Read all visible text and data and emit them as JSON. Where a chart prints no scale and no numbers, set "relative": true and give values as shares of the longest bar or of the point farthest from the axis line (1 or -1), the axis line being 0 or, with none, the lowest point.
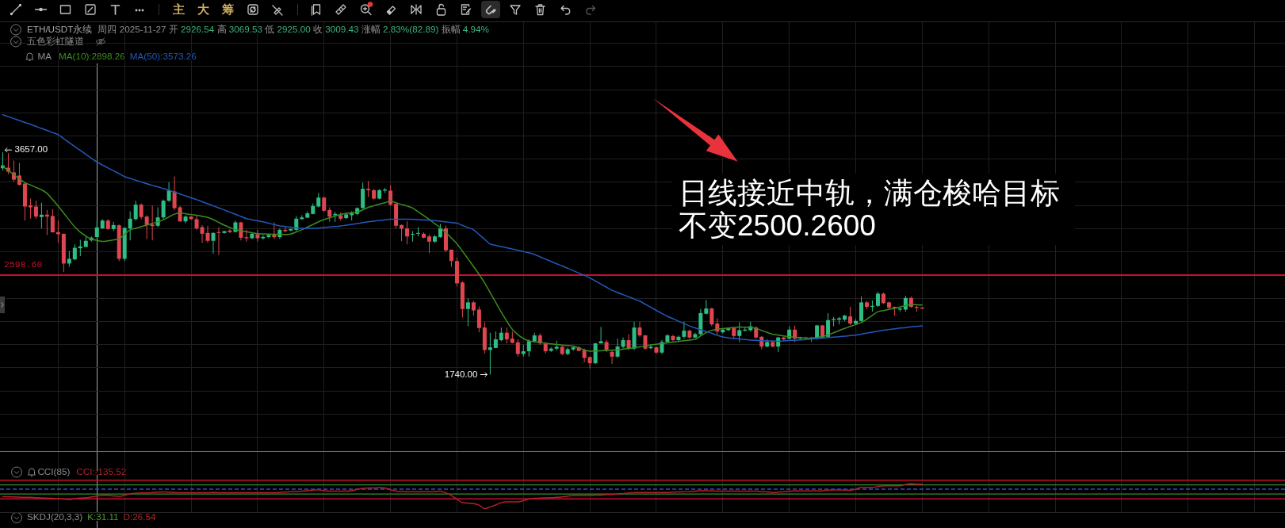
{
  "chart_data": [
    {
      "type": "candlestick",
      "title": "ETH/USDT永续",
      "subtitle": "周四 2025-11-27 开 2926.54 高 3069.53 低 2925.00 收 3009.43 涨幅 2.83%(82.89) 振幅 4.94%",
      "categories": [
        null,
        null,
        null,
        null,
        null,
        null,
        null,
        null,
        null,
        null,
        null,
        null,
        null,
        null,
        null,
        null,
        null,
        null,
        null,
        null,
        null,
        null,
        null,
        null,
        null,
        null,
        null,
        null,
        null,
        null,
        null,
        null,
        null,
        null,
        null,
        null,
        null,
        null,
        null,
        null,
        null,
        null,
        null,
        null,
        null,
        null,
        null,
        null,
        null,
        null,
        null,
        null,
        null,
        null,
        null,
        null,
        null,
        null,
        null,
        null,
        null,
        null,
        null,
        null,
        null,
        null,
        null,
        null,
        null,
        null,
        null,
        null,
        null,
        null,
        null,
        null,
        null,
        null,
        null,
        null,
        null,
        null,
        null,
        null,
        null,
        null,
        null,
        null,
        null,
        null,
        null,
        null,
        null,
        null,
        null,
        null,
        null,
        null,
        null,
        null,
        null,
        null,
        null,
        null,
        null,
        null,
        null,
        null,
        null,
        null,
        null,
        null,
        null,
        null,
        null,
        null,
        null,
        null,
        null,
        null,
        null,
        null,
        null,
        null,
        null,
        null,
        null,
        null,
        null,
        null,
        null,
        null,
        null,
        null,
        null,
        null,
        null,
        null,
        null,
        null,
        null,
        null,
        null,
        null,
        null,
        null,
        null,
        null,
        null,
        null,
        null,
        null,
        null,
        null,
        null,
        null,
        null,
        null,
        null,
        null,
        null,
        null,
        null,
        null,
        null,
        null,
        null,
        null,
        null,
        null,
        null,
        null,
        null,
        null,
        null,
        null,
        null,
        null,
        null,
        null,
        null,
        null,
        null,
        null,
        null,
        null,
        null,
        null,
        null,
        null,
        null,
        null,
        null,
        null,
        null,
        null,
        null,
        null,
        null,
        null,
        null,
        null,
        null,
        null,
        null,
        null,
        null,
        null,
        null,
        null,
        null,
        null,
        null,
        null,
        null,
        null,
        null,
        null,
        null,
        null,
        null,
        null,
        null,
        null,
        null,
        null,
        null,
        null,
        null,
        null,
        null,
        null
      ],
      "ohlc": [
        [
          3520,
          3657,
          3500,
          3545
        ],
        [
          3525,
          3650,
          3470,
          3490
        ],
        [
          3484,
          3587,
          3404,
          3422
        ],
        [
          3457,
          3566,
          3370,
          3377
        ],
        [
          3388,
          3390,
          3069,
          3190
        ],
        [
          3199,
          3258,
          3085,
          3183
        ],
        [
          3190,
          3240,
          3085,
          3103
        ],
        [
          3099,
          3222,
          3001,
          3119
        ],
        [
          3119,
          3160,
          2944,
          3103
        ],
        [
          3108,
          3167,
          2967,
          2967
        ],
        [
          2969,
          3069,
          2876,
          2951
        ],
        [
          2955,
          2955,
          2625,
          2698
        ],
        [
          2698,
          2807,
          2670,
          2739
        ],
        [
          2734,
          2864,
          2727,
          2834
        ],
        [
          2830,
          2903,
          2762,
          2846
        ],
        [
          2841,
          2932,
          2841,
          2894
        ],
        [
          2898,
          2932,
          2887,
          2921
        ],
        [
          2926.54,
          3069.53,
          2925,
          3009.43
        ],
        [
          3001,
          3080,
          2996,
          3069
        ],
        [
          3069,
          3080,
          2990,
          2996
        ],
        [
          2996,
          3058,
          2978,
          3030
        ],
        [
          3028,
          3035,
          2720,
          2739
        ],
        [
          2739,
          3012,
          2720,
          3005
        ],
        [
          3001,
          3149,
          2898,
          3085
        ],
        [
          3081,
          3240,
          3069,
          3206
        ],
        [
          3206,
          3217,
          3081,
          3099
        ],
        [
          3103,
          3115,
          2910,
          3030
        ],
        [
          3035,
          3199,
          2898,
          3021
        ],
        [
          3024,
          3183,
          3012,
          3096
        ],
        [
          3096,
          3251,
          3081,
          3240
        ],
        [
          3240,
          3400,
          3229,
          3327
        ],
        [
          3320,
          3450,
          3160,
          3176
        ],
        [
          3183,
          3194,
          3058,
          3062
        ],
        [
          3062,
          3115,
          3046,
          3103
        ],
        [
          3103,
          3108,
          3076,
          3081
        ],
        [
          3081,
          3115,
          2990,
          3001
        ],
        [
          3012,
          3030,
          2876,
          2955
        ],
        [
          2962,
          3024,
          2876,
          2894
        ],
        [
          2894,
          2967,
          2784,
          2962
        ],
        [
          2969,
          3012,
          2773,
          2962
        ],
        [
          2962,
          2978,
          2955,
          2978
        ],
        [
          2983,
          2994,
          2962,
          2969
        ],
        [
          2971,
          3069,
          2967,
          3053
        ],
        [
          3053,
          3058,
          2898,
          2921
        ],
        [
          2925,
          2989,
          2887,
          2916
        ],
        [
          2916,
          2967,
          2910,
          2955
        ],
        [
          2951,
          2989,
          2887,
          2916
        ],
        [
          2916,
          2944,
          2905,
          2928
        ],
        [
          2926,
          2955,
          2916,
          2944
        ],
        [
          2948,
          3053,
          2910,
          2926
        ],
        [
          2926,
          3001,
          2910,
          2989
        ],
        [
          2989,
          3012,
          2967,
          2978
        ],
        [
          2983,
          3001,
          2978,
          2996
        ],
        [
          2989,
          3108,
          2978,
          3085
        ],
        [
          3081,
          3115,
          3076,
          3096
        ],
        [
          3094,
          3149,
          3090,
          3131
        ],
        [
          3126,
          3217,
          3122,
          3194
        ],
        [
          3190,
          3308,
          3183,
          3267
        ],
        [
          3267,
          3274,
          3144,
          3154
        ],
        [
          3160,
          3183,
          3058,
          3103
        ],
        [
          3115,
          3144,
          3058,
          3126
        ],
        [
          3115,
          3138,
          3069,
          3085
        ],
        [
          3090,
          3138,
          3081,
          3122
        ],
        [
          3115,
          3149,
          3069,
          3131
        ],
        [
          3126,
          3183,
          3115,
          3176
        ],
        [
          3176,
          3395,
          3172,
          3343
        ],
        [
          3343,
          3411,
          3274,
          3331
        ],
        [
          3331,
          3340,
          3251,
          3258
        ],
        [
          3258,
          3340,
          3251,
          3331
        ],
        [
          3327,
          3350,
          3308,
          3336
        ],
        [
          3327,
          3372,
          3194,
          3206
        ],
        [
          3213,
          3217,
          3001,
          3024
        ],
        [
          3030,
          3035,
          2891,
          2999
        ],
        [
          3001,
          3062,
          2864,
          2932
        ],
        [
          2948,
          2978,
          2887,
          2953
        ],
        [
          2955,
          3012,
          2932,
          2962
        ],
        [
          2955,
          2967,
          2916,
          2921
        ],
        [
          2932,
          2948,
          2789,
          2887
        ],
        [
          2887,
          2944,
          2876,
          2932
        ],
        [
          2926,
          3040,
          2921,
          3001
        ],
        [
          3001,
          3024,
          2796,
          2812
        ],
        [
          2818,
          2818,
          2670,
          2720
        ],
        [
          2720,
          2750,
          2500,
          2527
        ],
        [
          2534,
          2545,
          2233,
          2306
        ],
        [
          2306,
          2397,
          2158,
          2363
        ],
        [
          2363,
          2374,
          2249,
          2294
        ],
        [
          2301,
          2328,
          2105,
          2142
        ],
        [
          2146,
          2192,
          1923,
          1952
        ],
        [
          1952,
          2101,
          1740,
          1975
        ],
        [
          1970,
          2112,
          1968,
          2044
        ],
        [
          2037,
          2146,
          2028,
          2101
        ],
        [
          2101,
          2146,
          2009,
          2044
        ],
        [
          2050,
          2112,
          2009,
          2014
        ],
        [
          2018,
          2044,
          1895,
          1918
        ],
        [
          1918,
          1998,
          1895,
          1941
        ],
        [
          1941,
          2044,
          1895,
          2028
        ],
        [
          2028,
          2101,
          2014,
          2078
        ],
        [
          2078,
          2096,
          1998,
          2009
        ],
        [
          2005,
          2021,
          1923,
          1941
        ],
        [
          1945,
          1975,
          1936,
          1964
        ],
        [
          1964,
          2032,
          1952,
          1980
        ],
        [
          1980,
          1986,
          1907,
          1918
        ],
        [
          1918,
          1973,
          1907,
          1959
        ],
        [
          1957,
          1986,
          1945,
          1975
        ],
        [
          1975,
          1986,
          1940,
          1945
        ],
        [
          1952,
          1964,
          1845,
          1884
        ],
        [
          1891,
          1895,
          1793,
          1838
        ],
        [
          1838,
          2014,
          1832,
          2009
        ],
        [
          2009,
          2151,
          2009,
          2028
        ],
        [
          2021,
          2037,
          1936,
          1952
        ],
        [
          1936,
          1952,
          1832,
          1895
        ],
        [
          1895,
          2050,
          1884,
          1982
        ],
        [
          1980,
          2060,
          1968,
          2037
        ],
        [
          2037,
          2089,
          1952,
          1964
        ],
        [
          1964,
          2196,
          1952,
          2146
        ],
        [
          2146,
          2196,
          2066,
          2078
        ],
        [
          2078,
          2082,
          1952,
          1964
        ],
        [
          1968,
          1998,
          1959,
          1980
        ],
        [
          1975,
          1986,
          1918,
          1930
        ],
        [
          1930,
          2037,
          1918,
          2021
        ],
        [
          2021,
          2089,
          2014,
          2078
        ],
        [
          2073,
          2082,
          2028,
          2037
        ],
        [
          2037,
          2078,
          2028,
          2066
        ],
        [
          2066,
          2196,
          2050,
          2119
        ],
        [
          2119,
          2128,
          2050,
          2060
        ],
        [
          2060,
          2101,
          2055,
          2089
        ],
        [
          2089,
          2306,
          2078,
          2271
        ],
        [
          2265,
          2385,
          2260,
          2310
        ],
        [
          2310,
          2317,
          2157,
          2173
        ],
        [
          2180,
          2226,
          2089,
          2112
        ],
        [
          2105,
          2135,
          2096,
          2128
        ],
        [
          2123,
          2146,
          2119,
          2139
        ],
        [
          2141,
          2146,
          2050,
          2073
        ],
        [
          2073,
          2192,
          2021,
          2123
        ],
        [
          2119,
          2146,
          2112,
          2128
        ],
        [
          2123,
          2196,
          2112,
          2157
        ],
        [
          2146,
          2157,
          2050,
          2060
        ],
        [
          2066,
          2073,
          1959,
          1982
        ],
        [
          1982,
          2044,
          1975,
          2021
        ],
        [
          2021,
          2028,
          1975,
          1982
        ],
        [
          1982,
          2066,
          1934,
          2060
        ],
        [
          2060,
          2066,
          2032,
          2044
        ],
        [
          2050,
          2157,
          2044,
          2128
        ],
        [
          2128,
          2162,
          2021,
          2050
        ],
        [
          2050,
          2066,
          2044,
          2060
        ],
        [
          2060,
          2066,
          2050,
          2055
        ],
        [
          2060,
          2066,
          2021,
          2044
        ],
        [
          2050,
          2169,
          2044,
          2164
        ],
        [
          2164,
          2169,
          2050,
          2060
        ],
        [
          2066,
          2271,
          2060,
          2210
        ],
        [
          2210,
          2237,
          2157,
          2219
        ],
        [
          2214,
          2237,
          2173,
          2226
        ],
        [
          2214,
          2255,
          2203,
          2249
        ],
        [
          2242,
          2324,
          2169,
          2180
        ],
        [
          2180,
          2219,
          2173,
          2203
        ],
        [
          2203,
          2415,
          2196,
          2363
        ],
        [
          2363,
          2374,
          2306,
          2324
        ],
        [
          2324,
          2379,
          2283,
          2333
        ],
        [
          2333,
          2454,
          2324,
          2438
        ],
        [
          2438,
          2447,
          2351,
          2356
        ],
        [
          2363,
          2369,
          2306,
          2317
        ],
        [
          2324,
          2328,
          2249,
          2310
        ],
        [
          2301,
          2324,
          2283,
          2310
        ],
        [
          2301,
          2420,
          2283,
          2401
        ],
        [
          2401,
          2415,
          2317,
          2324
        ],
        [
          2324,
          2333,
          2283,
          2315
        ],
        [
          2319,
          2319,
          2306,
          2310
        ],
        null,
        null,
        null,
        null,
        null,
        null,
        null,
        null,
        null,
        null,
        null,
        null,
        null,
        null,
        null,
        null,
        null,
        null,
        null,
        null,
        null,
        null,
        null,
        null,
        null,
        null,
        null,
        null,
        null,
        null,
        null,
        null,
        null,
        null,
        null,
        null,
        null,
        null,
        null,
        null,
        null,
        null,
        null,
        null,
        null,
        null,
        null,
        null,
        null,
        null,
        null,
        null,
        null,
        null,
        null,
        null,
        null,
        null,
        null,
        null,
        null,
        null,
        null,
        null,
        null
      ],
      "series": [
        {
          "type": "line",
          "name": "MA(10):2898.26",
          "color": "#3d8c1f",
          "values": [
            3536,
            3500,
            3464,
            3429,
            3396,
            3375,
            3355,
            3334,
            3304,
            3249,
            3194,
            3134,
            3073,
            3013,
            2969,
            2936,
            2908,
            2898,
            2889,
            2894,
            2902,
            2910,
            2950,
            2989,
            3002,
            3016,
            3029,
            3044,
            3059,
            3076,
            3100,
            3124,
            3135,
            3128,
            3121,
            3115,
            3105,
            3096,
            3077,
            3053,
            3029,
            3009,
            2991,
            2981,
            2972,
            2964,
            2955,
            2954,
            2952,
            2951,
            2950,
            2949,
            2953,
            2971,
            2989,
            3012,
            3035,
            3058,
            3077,
            3092,
            3107,
            3122,
            3130,
            3137,
            3143,
            3161,
            3183,
            3196,
            3210,
            3223,
            3236,
            3222,
            3208,
            3194,
            3177,
            3144,
            3112,
            3078,
            3042,
            3007,
            2965,
            2918,
            2869,
            2804,
            2738,
            2672,
            2604,
            2531,
            2447,
            2363,
            2279,
            2201,
            2130,
            2084,
            2051,
            2031,
            2024,
            2017,
            2010,
            2005,
            2000,
            1995,
            1991,
            1986,
            1970,
            1954,
            1941,
            1944,
            1946,
            1948,
            1951,
            1954,
            1960,
            1966,
            1972,
            1979,
            1987,
            1996,
            2002,
            2008,
            2014,
            2020,
            2026,
            2032,
            2038,
            2044,
            2074,
            2103,
            2122,
            2132,
            2137,
            2142,
            2147,
            2150,
            2149,
            2147,
            2138,
            2121,
            2104,
            2088,
            2081,
            2074,
            2067,
            2062,
            2058,
            2053,
            2053,
            2061,
            2069,
            2082,
            2101,
            2120,
            2138,
            2155,
            2172,
            2189,
            2218,
            2251,
            2283,
            2293,
            2303,
            2313,
            2324,
            2335,
            2344,
            2342,
            2340,
            null,
            null,
            null,
            null,
            null,
            null,
            null,
            null,
            null,
            null,
            null,
            null,
            null,
            null,
            null,
            null,
            null,
            null,
            null,
            null,
            null,
            null,
            null,
            null,
            null,
            null,
            null,
            null,
            null,
            null,
            null,
            null,
            null,
            null,
            null,
            null,
            null,
            null,
            null,
            null,
            null,
            null,
            null,
            null,
            null,
            null,
            null,
            null,
            null,
            null,
            null,
            null,
            null,
            null,
            null,
            null,
            null,
            null,
            null,
            null,
            null,
            null,
            null,
            null,
            null
          ]
        },
        {
          "type": "line",
          "name": "MA(50):3573.26",
          "color": "#2159b9",
          "values": [
            3981,
            3965,
            3948,
            3932,
            3915,
            3899,
            3881,
            3863,
            3846,
            3828,
            3810,
            3776,
            3741,
            3707,
            3674,
            3640,
            3607,
            3573,
            3548,
            3523,
            3498,
            3473,
            3448,
            3433,
            3417,
            3402,
            3386,
            3372,
            3359,
            3345,
            3331,
            3315,
            3298,
            3282,
            3265,
            3249,
            3231,
            3214,
            3196,
            3178,
            3160,
            3141,
            3123,
            3104,
            3085,
            3076,
            3067,
            3058,
            3046,
            3034,
            3023,
            3017,
            3012,
            3006,
            3001,
            3001,
            3001,
            3003,
            3008,
            3013,
            3018,
            3022,
            3029,
            3036,
            3043,
            3051,
            3058,
            3064,
            3070,
            3075,
            3081,
            3081,
            3081,
            3081,
            3079,
            3077,
            3074,
            3072,
            3069,
            3063,
            3058,
            3052,
            3046,
            3027,
            3008,
            2989,
            2948,
            2907,
            2866,
            2855,
            2844,
            2834,
            2823,
            2812,
            2801,
            2791,
            2776,
            2756,
            2736,
            2716,
            2696,
            2677,
            2657,
            2637,
            2616,
            2596,
            2574,
            2547,
            2521,
            2494,
            2468,
            2448,
            2430,
            2411,
            2392,
            2374,
            2347,
            2321,
            2294,
            2268,
            2243,
            2222,
            2201,
            2180,
            2160,
            2143,
            2127,
            2112,
            2096,
            2080,
            2065,
            2057,
            2052,
            2047,
            2042,
            2037,
            2035,
            2033,
            2031,
            2030,
            2028,
            2031,
            2034,
            2036,
            2039,
            2043,
            2047,
            2051,
            2055,
            2059,
            2063,
            2067,
            2072,
            2076,
            2081,
            2089,
            2098,
            2106,
            2115,
            2123,
            2129,
            2135,
            2141,
            2146,
            2152,
            2156,
            2160,
            null,
            null,
            null,
            null,
            null,
            null,
            null,
            null,
            null,
            null,
            null,
            null,
            null,
            null,
            null,
            null,
            null,
            null,
            null,
            null,
            null,
            null,
            null,
            null,
            null,
            null,
            null,
            null,
            null,
            null,
            null,
            null,
            null,
            null,
            null,
            null,
            null,
            null,
            null,
            null,
            null,
            null,
            null,
            null,
            null,
            null,
            null,
            null,
            null,
            null,
            null,
            null,
            null,
            null,
            null,
            null,
            null,
            null,
            null,
            null,
            null,
            null,
            null,
            null,
            null
          ]
        }
      ],
      "grid": true,
      "legend": "top left",
      "legend_title": "MA",
      "ref_lines": [
        {
          "axis": "y",
          "value": 2598.6,
          "label": "2598.60",
          "color": "#c8102e"
        }
      ],
      "annotations": [
        "主",
        "大",
        "筹",
        "五色彩虹隧道",
        "日线接近中轨，满仓梭哈目标不变2500.2600",
        "3657.00",
        "1740.00"
      ]
    },
    {
      "type": "line",
      "title": "CCI(85)",
      "relative": true,
      "categories": [
        null,
        null,
        null,
        null,
        null,
        null,
        null,
        null,
        null,
        null,
        null,
        null,
        null,
        null,
        null,
        null,
        null,
        null,
        null,
        null,
        null,
        null,
        null,
        null,
        null,
        null,
        null,
        null,
        null,
        null,
        null,
        null,
        null,
        null,
        null,
        null,
        null,
        null,
        null,
        null,
        null,
        null,
        null,
        null,
        null,
        null,
        null,
        null,
        null,
        null,
        null,
        null,
        null,
        null,
        null,
        null,
        null,
        null,
        null,
        null,
        null,
        null,
        null,
        null,
        null,
        null,
        null,
        null,
        null,
        null,
        null,
        null,
        null,
        null,
        null,
        null,
        null,
        null,
        null,
        null,
        null,
        null,
        null,
        null,
        null,
        null,
        null,
        null,
        null,
        null,
        null,
        null,
        null,
        null,
        null,
        null,
        null,
        null,
        null,
        null,
        null,
        null,
        null,
        null,
        null,
        null,
        null,
        null,
        null,
        null,
        null,
        null,
        null,
        null,
        null,
        null,
        null,
        null,
        null,
        null,
        null,
        null,
        null,
        null,
        null,
        null,
        null,
        null,
        null,
        null,
        null,
        null,
        null,
        null,
        null,
        null,
        null,
        null,
        null,
        null,
        null,
        null,
        null,
        null,
        null,
        null,
        null,
        null,
        null,
        null,
        null,
        null,
        null,
        null,
        null,
        null,
        null,
        null,
        null,
        null,
        null,
        null,
        null,
        null,
        null,
        null,
        null,
        null,
        null,
        null,
        null,
        null,
        null,
        null,
        null,
        null,
        null,
        null,
        null,
        null,
        null,
        null,
        null,
        null,
        null,
        null,
        null,
        null,
        null,
        null,
        null,
        null,
        null,
        null,
        null,
        null,
        null,
        null,
        null,
        null,
        null,
        null,
        null,
        null,
        null,
        null,
        null,
        null,
        null,
        null,
        null,
        null,
        null,
        null,
        null,
        null,
        null,
        null,
        null,
        null,
        null,
        null,
        null,
        null,
        null,
        null,
        null,
        null,
        null,
        null,
        null,
        null
      ],
      "series": [
        {
          "name": "CCI:-135.52",
          "color": "#b3202a",
          "values": [
            -0.39,
            -0.39,
            -0.4,
            -0.41,
            -0.42,
            -0.42,
            -0.44,
            -0.45,
            -0.46,
            -0.47,
            -0.49,
            -0.51,
            -0.53,
            -0.49,
            -0.46,
            -0.44,
            -0.4,
            -0.36,
            -0.31,
            -0.31,
            -0.35,
            -0.37,
            -0.31,
            -0.24,
            -0.21,
            -0.19,
            -0.19,
            -0.17,
            -0.15,
            -0.14,
            -0.15,
            -0.17,
            -0.18,
            -0.18,
            -0.18,
            -0.18,
            -0.18,
            -0.18,
            -0.17,
            -0.18,
            -0.18,
            -0.18,
            -0.18,
            -0.18,
            -0.18,
            -0.18,
            -0.18,
            -0.18,
            -0.18,
            -0.18,
            -0.17,
            -0.15,
            -0.13,
            -0.12,
            -0.1,
            -0.08,
            -0.05,
            -0.03,
            -0.08,
            -0.1,
            -0.1,
            -0.1,
            -0.1,
            -0.08,
            -0.01,
            0.04,
            0.06,
            0.06,
            0.08,
            0.06,
            -0.03,
            -0.1,
            -0.12,
            -0.13,
            -0.13,
            -0.13,
            -0.13,
            -0.13,
            -0.12,
            -0.1,
            -0.19,
            -0.33,
            -0.51,
            -0.69,
            -0.72,
            -0.74,
            -0.82,
            -1,
            -0.91,
            -0.81,
            -0.69,
            -0.65,
            -0.65,
            -0.65,
            -0.59,
            -0.51,
            -0.47,
            -0.46,
            -0.45,
            -0.44,
            -0.42,
            -0.4,
            -0.36,
            -0.33,
            -0.33,
            -0.33,
            -0.33,
            -0.31,
            -0.3,
            -0.28,
            -0.27,
            -0.24,
            -0.23,
            -0.19,
            -0.18,
            -0.17,
            -0.17,
            -0.17,
            -0.17,
            -0.17,
            -0.17,
            -0.15,
            -0.14,
            -0.13,
            -0.12,
            -0.1,
            -0.08,
            -0.08,
            -0.09,
            -0.1,
            -0.1,
            -0.1,
            -0.1,
            -0.1,
            -0.1,
            -0.1,
            -0.1,
            -0.13,
            -0.14,
            -0.17,
            -0.15,
            -0.13,
            -0.1,
            -0.09,
            -0.09,
            -0.09,
            -0.09,
            -0.09,
            -0.08,
            -0.05,
            -0.04,
            -0.04,
            -0.05,
            -0.05,
            0,
            0.09,
            0.09,
            0.09,
            0.14,
            0.17,
            0.17,
            0.17,
            0.17,
            0.24,
            0.28,
            0.25,
            0.25,
            null,
            null,
            null,
            null,
            null,
            null,
            null,
            null,
            null,
            null,
            null,
            null,
            null,
            null,
            null,
            null,
            null,
            null,
            null,
            null,
            null,
            null,
            null,
            null,
            null,
            null,
            null,
            null,
            null,
            null,
            null,
            null,
            null,
            null,
            null,
            null,
            null,
            null,
            null,
            null,
            null,
            null,
            null,
            null,
            null,
            null,
            null,
            null,
            null,
            null,
            null,
            null,
            null,
            null,
            null,
            null,
            null,
            null,
            null,
            null,
            null,
            null,
            null,
            null,
            null
          ]
        }
      ],
      "ref_lines": [
        {
          "axis": "y",
          "value": 0.46,
          "color": "#c8102e"
        },
        {
          "axis": "y",
          "value": 0.22,
          "color": "#2f8f2f"
        },
        {
          "axis": "y",
          "value": 0,
          "color": "#2d4fd0",
          "line_style": "dashed"
        },
        {
          "axis": "y",
          "value": -0.25,
          "color": "#2f8f2f"
        },
        {
          "axis": "y",
          "value": -0.5,
          "color": "#c8102e"
        }
      ],
      "grid": "x"
    },
    {
      "type": "other",
      "title": "SKDJ(20,3,3)",
      "annotations": [
        "K:31.11",
        "D:26.54"
      ]
    }
  ]
}
